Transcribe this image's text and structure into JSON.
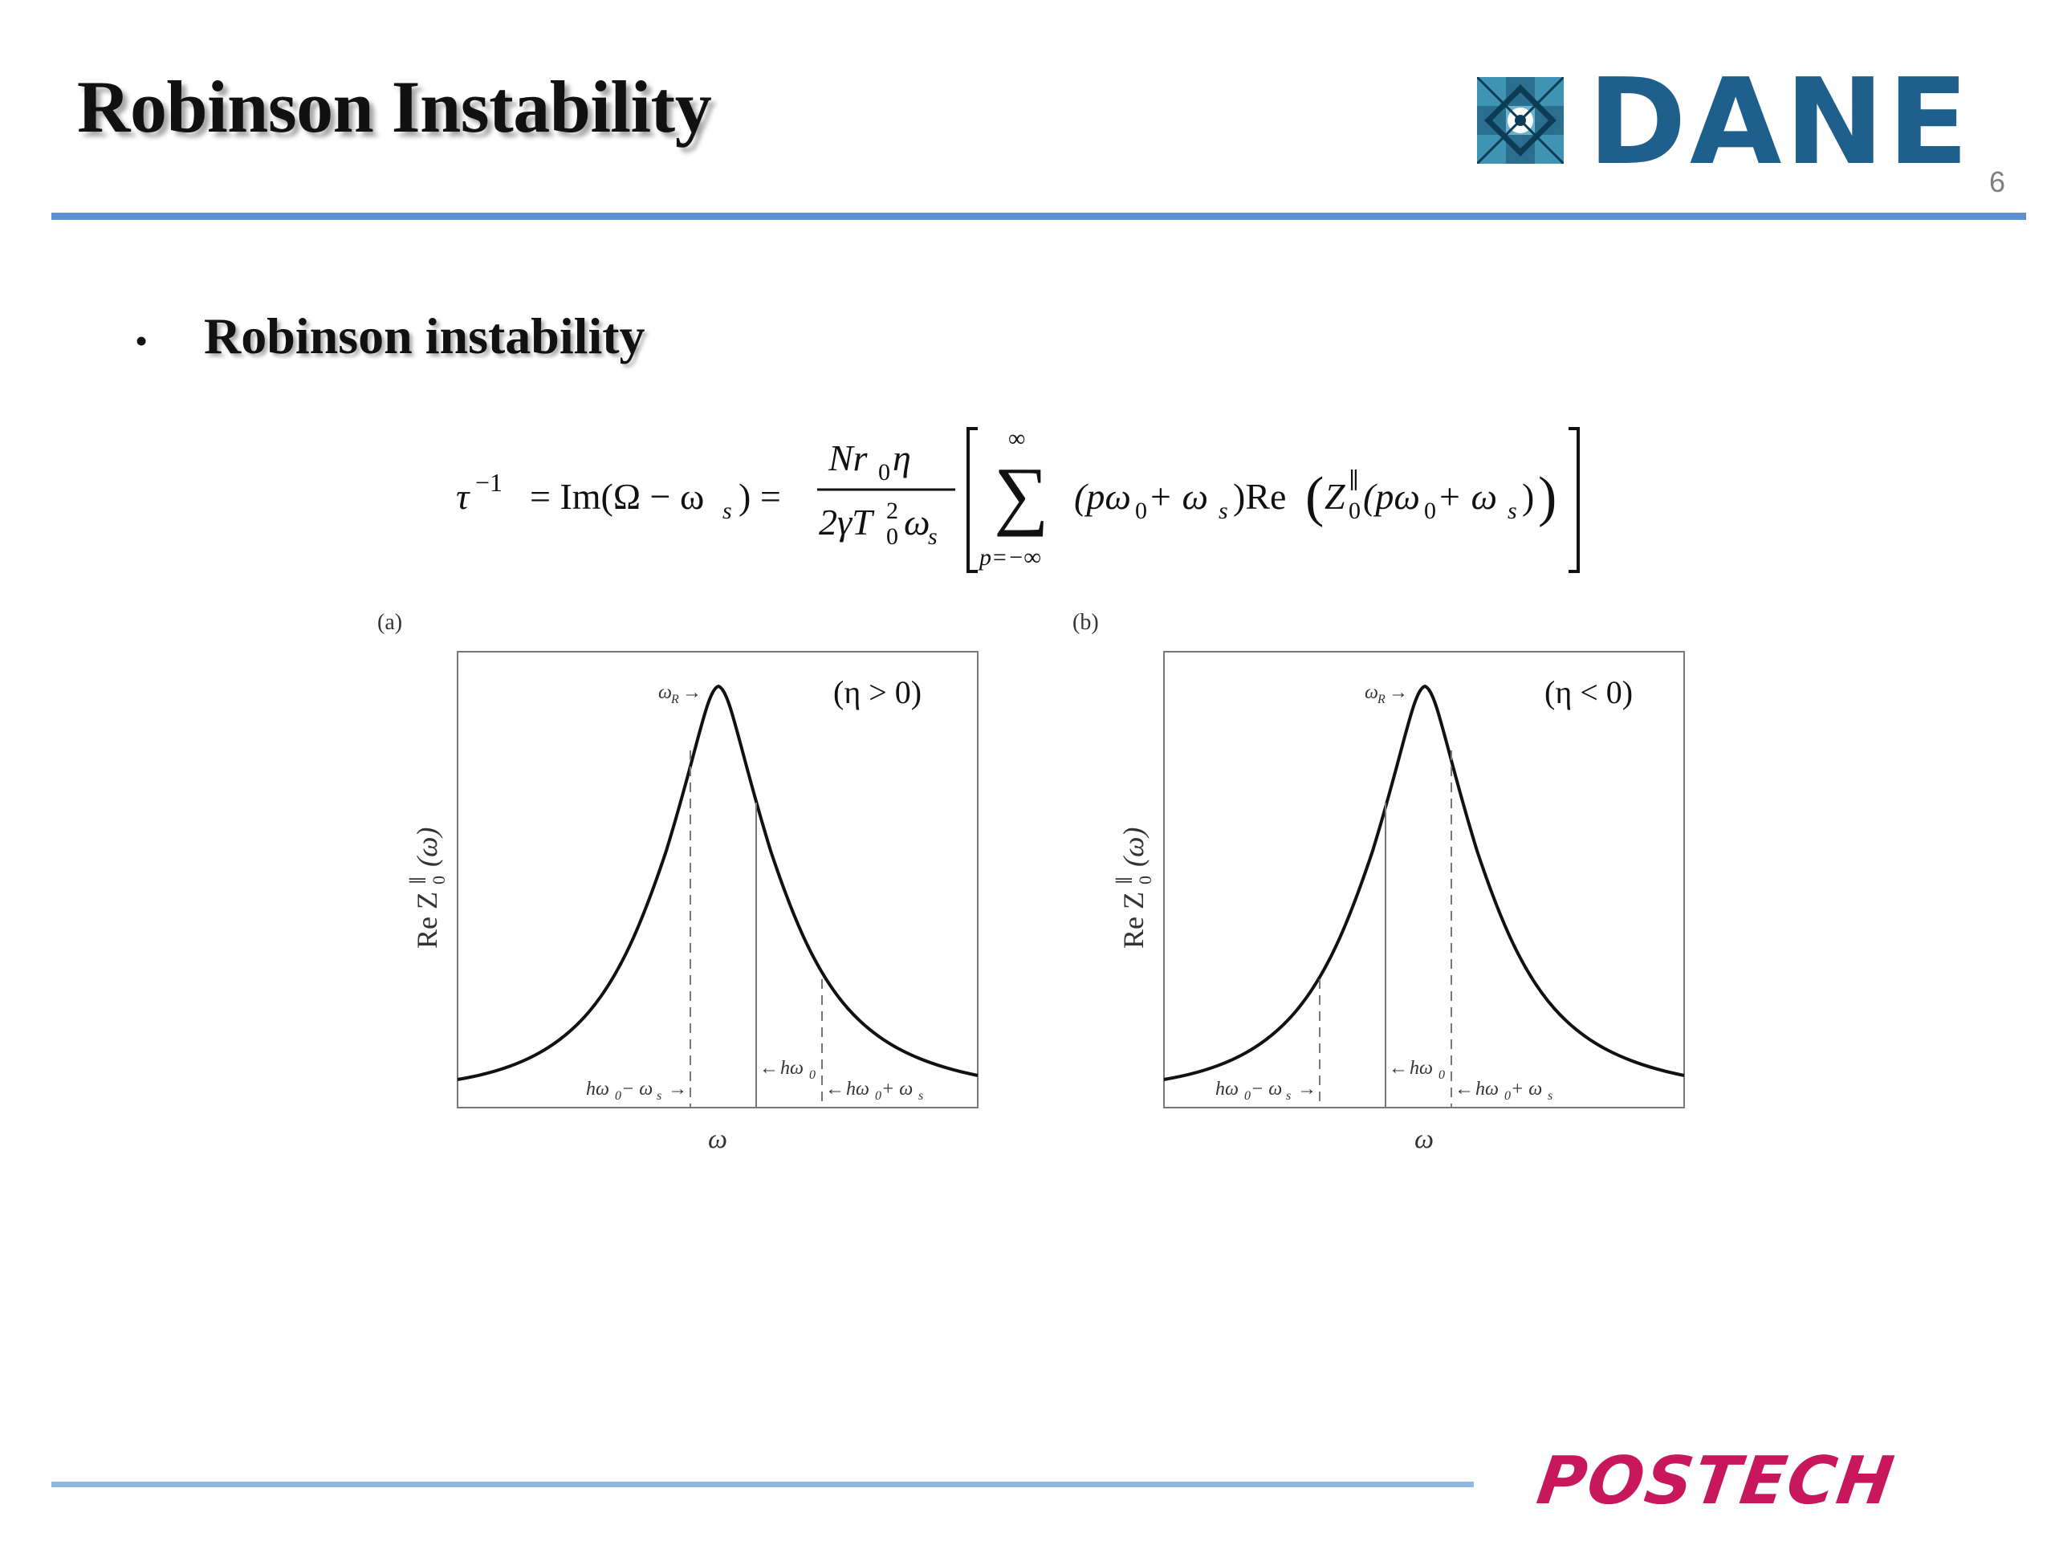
{
  "slide": {
    "title": "Robinson Instability",
    "number": "6",
    "bullet": "Robinson instability"
  },
  "logos": {
    "dane": "DANE",
    "postech": "POSTECH"
  },
  "equation": {
    "lhs_tau": "τ",
    "lhs_exp": "−1",
    "im_expr": "= Im(Ω − ω",
    "im_sub": "s",
    "im_close": ") =",
    "numerator": "Nr",
    "num_sub": "0",
    "num_tail": "η",
    "denominator": "2γT",
    "den_sup": "2",
    "den_sub": "0",
    "den_tail": "ω",
    "den_tail_sub": "s",
    "sum_upper": "∞",
    "sum_lower": "p=−∞",
    "summand_a": "(pω",
    "summand_a_sub": "0",
    "summand_b": " + ω",
    "summand_b_sub": "s",
    "summand_c": ")Re",
    "z": "Z",
    "z_sup": "∥",
    "z_sub": "0",
    "z_arg_a": "(pω",
    "z_arg_a_sub": "0",
    "z_arg_b": " + ω",
    "z_arg_b_sub": "s",
    "z_arg_close": ")"
  },
  "figure": {
    "panels": [
      {
        "tag": "(a)",
        "condition": "(η > 0)",
        "ylabel": "Re Z",
        "ylabel_sup": "∥",
        "ylabel_sub": "0",
        "ylabel_arg": "(ω)",
        "xlabel": "ω",
        "omega_r": "ω",
        "omega_r_sub": "R",
        "h_minus": "hω",
        "h_minus_sub": "0",
        "h_minus_tail": " − ω",
        "h_minus_tail_sub": "s",
        "h_center": "hω",
        "h_center_sub": "0",
        "h_plus": "hω",
        "h_plus_sub": "0",
        "h_plus_tail": " + ω",
        "h_plus_tail_sub": "s"
      },
      {
        "tag": "(b)",
        "condition": "(η < 0)",
        "ylabel": "Re Z",
        "ylabel_sup": "∥",
        "ylabel_sub": "0",
        "ylabel_arg": "(ω)",
        "xlabel": "ω",
        "omega_r": "ω",
        "omega_r_sub": "R",
        "h_minus": "hω",
        "h_minus_sub": "0",
        "h_minus_tail": " − ω",
        "h_minus_tail_sub": "s",
        "h_center": "hω",
        "h_center_sub": "0",
        "h_plus": "hω",
        "h_plus_sub": "0",
        "h_plus_tail": " + ω",
        "h_plus_tail_sub": "s"
      }
    ]
  },
  "colors": {
    "rule": "#5b8fd0",
    "dane_blue": "#1f5f8c",
    "postech_magenta": "#c8175d"
  }
}
